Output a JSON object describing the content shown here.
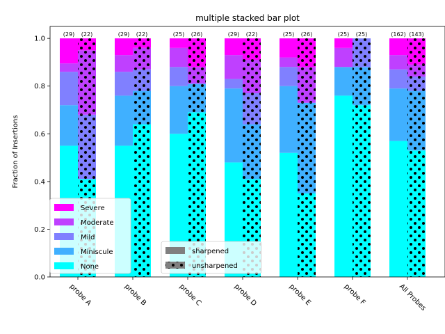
{
  "chart_data": {
    "type": "bar",
    "title": "multiple stacked bar plot",
    "xlabel": "",
    "ylabel": "Fraction of Insertions",
    "ylim": [
      0,
      1.05
    ],
    "yticks": [
      "0.0",
      "0.2",
      "0.4",
      "0.6",
      "0.8",
      "1.0"
    ],
    "categories": [
      "probe A",
      "probe B",
      "probe C",
      "probe D",
      "probe E",
      "probe F",
      "All Probes"
    ],
    "stack_order": [
      "None",
      "Miniscule",
      "Mild",
      "Moderate",
      "Severe"
    ],
    "stack_colors": {
      "None": "#00ffff",
      "Miniscule": "#40b0ff",
      "Mild": "#8080ff",
      "Moderate": "#bf40ff",
      "Severe": "#ff00ff"
    },
    "groups": [
      {
        "name": "sharpened",
        "hatch": "none",
        "counts": [
          "(29)",
          "(29)",
          "(25)",
          "(29)",
          "(25)",
          "(25)",
          "(162)"
        ],
        "series": [
          {
            "name": "None",
            "values": [
              0.55,
              0.55,
              0.6,
              0.48,
              0.52,
              0.76,
              0.57
            ]
          },
          {
            "name": "Miniscule",
            "values": [
              0.17,
              0.21,
              0.2,
              0.31,
              0.28,
              0.12,
              0.22
            ]
          },
          {
            "name": "Mild",
            "values": [
              0.14,
              0.1,
              0.08,
              0.04,
              0.08,
              0.0,
              0.08
            ]
          },
          {
            "name": "Moderate",
            "values": [
              0.035,
              0.07,
              0.08,
              0.1,
              0.04,
              0.08,
              0.06
            ]
          },
          {
            "name": "Severe",
            "values": [
              0.105,
              0.07,
              0.04,
              0.07,
              0.08,
              0.04,
              0.07
            ]
          }
        ]
      },
      {
        "name": "unsharpened",
        "hatch": "dots",
        "counts": [
          "(22)",
          "(22)",
          "(26)",
          "(22)",
          "(26)",
          "(25)",
          "(143)"
        ],
        "series": [
          {
            "name": "None",
            "values": [
              0.41,
              0.64,
              0.69,
              0.41,
              0.35,
              0.72,
              0.53
            ]
          },
          {
            "name": "Miniscule",
            "values": [
              0.0,
              0.14,
              0.12,
              0.23,
              0.38,
              0.16,
              0.25
            ]
          },
          {
            "name": "Mild",
            "values": [
              0.27,
              0.09,
              0.0,
              0.13,
              0.0,
              0.12,
              0.06
            ]
          },
          {
            "name": "Moderate",
            "values": [
              0.27,
              0.09,
              0.07,
              0.14,
              0.15,
              0.0,
              0.05
            ]
          },
          {
            "name": "Severe",
            "values": [
              0.05,
              0.04,
              0.12,
              0.09,
              0.12,
              0.0,
              0.11
            ]
          }
        ]
      }
    ],
    "legend_severity": {
      "placement": "lower-left",
      "entries": [
        "Severe",
        "Moderate",
        "Mild",
        "Miniscule",
        "None"
      ]
    },
    "legend_groups": {
      "placement": "lower-center",
      "entries": [
        "sharpened",
        "unsharpened"
      ],
      "swatch_color": "#808080"
    },
    "grid": false
  }
}
